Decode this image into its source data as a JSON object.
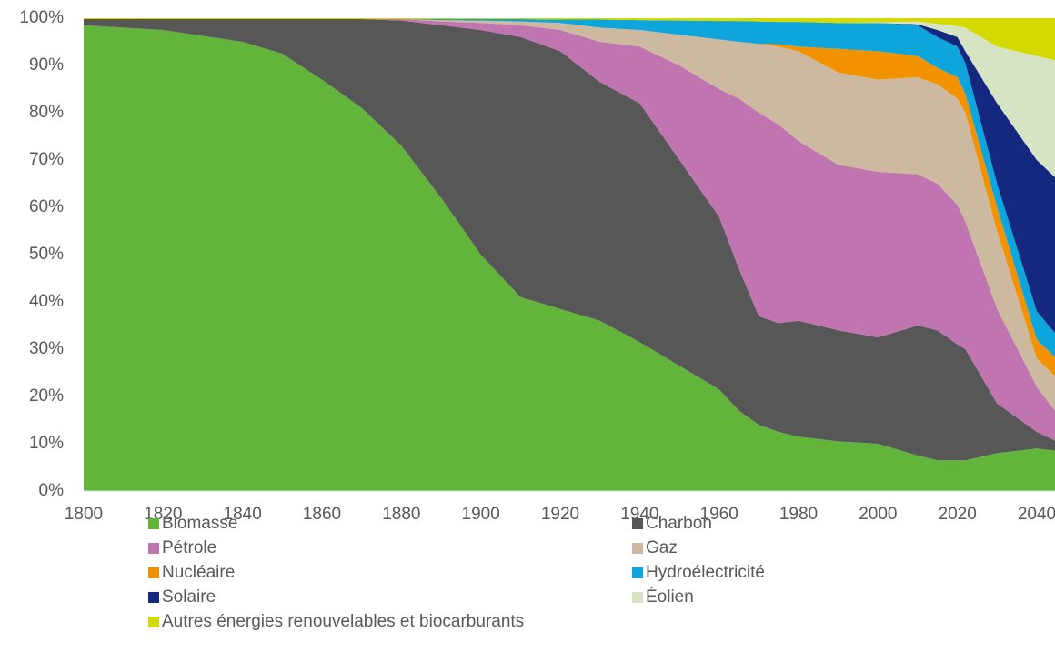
{
  "chart_data": {
    "type": "stacked_area",
    "x": [
      1800,
      1820,
      1840,
      1850,
      1860,
      1870,
      1880,
      1890,
      1900,
      1910,
      1920,
      1930,
      1940,
      1950,
      1960,
      1965,
      1970,
      1975,
      1980,
      1990,
      2000,
      2010,
      2015,
      2020,
      2022,
      2030,
      2040,
      2045
    ],
    "xlim": [
      1800,
      2045
    ],
    "xticks": [
      1800,
      1820,
      1840,
      1860,
      1880,
      1900,
      1920,
      1940,
      1960,
      1980,
      2000,
      2020,
      2040
    ],
    "ylim": [
      0,
      100
    ],
    "yticks": [
      {
        "value": 0,
        "label": "0%"
      },
      {
        "value": 10,
        "label": "10%"
      },
      {
        "value": 20,
        "label": "20%"
      },
      {
        "value": 30,
        "label": "30%"
      },
      {
        "value": 40,
        "label": "40%"
      },
      {
        "value": 50,
        "label": "50%"
      },
      {
        "value": 60,
        "label": "60%"
      },
      {
        "value": 70,
        "label": "70%"
      },
      {
        "value": 80,
        "label": "80%"
      },
      {
        "value": 90,
        "label": "90%"
      },
      {
        "value": 100,
        "label": "100%"
      }
    ],
    "series": [
      {
        "name": "Biomasse",
        "color": "#63b43a",
        "values": [
          98.5,
          97.5,
          95,
          92.5,
          87,
          81,
          73,
          62,
          50,
          41,
          38.5,
          36,
          31.5,
          26.5,
          21.5,
          17,
          14,
          12.5,
          11.5,
          10.5,
          10,
          7.5,
          6.5,
          6.5,
          6.5,
          8,
          9,
          8.5
        ]
      },
      {
        "name": "Charbon",
        "color": "#575757",
        "values": [
          1.3,
          2.3,
          4.8,
          7.3,
          12.8,
          18.8,
          26.5,
          36.5,
          47.5,
          55,
          54.5,
          50.5,
          50.5,
          43.5,
          36.5,
          30,
          23,
          23,
          24.5,
          23.5,
          22.5,
          27.5,
          27.5,
          24.5,
          23.5,
          10.5,
          3.5,
          2
        ]
      },
      {
        "name": "Pétrole",
        "color": "#c074b0",
        "values": [
          0,
          0,
          0,
          0,
          0,
          0,
          0.3,
          0.8,
          1.5,
          2.5,
          4.5,
          8.5,
          12,
          20,
          27,
          36,
          43,
          42,
          38,
          35,
          35,
          32,
          31,
          29.5,
          27,
          20,
          9.5,
          6
        ]
      },
      {
        "name": "Gaz",
        "color": "#ccb9a0",
        "values": [
          0,
          0,
          0,
          0,
          0,
          0,
          0,
          0.3,
          0.5,
          0.8,
          1.5,
          3,
          3.5,
          6.5,
          10.5,
          12,
          14.5,
          16.5,
          19,
          19.5,
          19.5,
          20.5,
          21,
          22.5,
          23,
          16.5,
          6,
          7.5
        ]
      },
      {
        "name": "Nucléaire",
        "color": "#f39200",
        "values": [
          0,
          0,
          0,
          0,
          0,
          0,
          0,
          0,
          0,
          0,
          0,
          0,
          0,
          0,
          0,
          0,
          0.1,
          0.5,
          1,
          5,
          6,
          4.5,
          3.5,
          4.5,
          4,
          5,
          4,
          4
        ]
      },
      {
        "name": "Hydroélectricité",
        "color": "#0ea5dc",
        "values": [
          0,
          0,
          0,
          0,
          0,
          0,
          0,
          0.2,
          0.3,
          0.5,
          0.7,
          1.7,
          2.1,
          3,
          3.9,
          4.4,
          4.7,
          4.7,
          5.2,
          5.5,
          6,
          6.5,
          6.5,
          6.5,
          6.5,
          5,
          6,
          5
        ]
      },
      {
        "name": "Solaire",
        "color": "#14287f",
        "values": [
          0,
          0,
          0,
          0,
          0,
          0,
          0,
          0,
          0,
          0,
          0,
          0,
          0,
          0,
          0,
          0,
          0,
          0,
          0,
          0,
          0,
          0.2,
          1.5,
          2,
          2.5,
          17,
          32,
          33
        ]
      },
      {
        "name": "Éolien",
        "color": "#d7e4c4",
        "values": [
          0,
          0,
          0,
          0,
          0,
          0,
          0,
          0,
          0,
          0,
          0,
          0,
          0,
          0,
          0,
          0,
          0,
          0,
          0,
          0,
          0.1,
          0.6,
          1.3,
          2.3,
          5,
          12,
          22,
          25
        ]
      },
      {
        "name": "Autres énergies renouvelables et biocarburants",
        "color": "#d4d900",
        "values": [
          0.2,
          0.2,
          0.2,
          0.2,
          0.2,
          0.2,
          0.2,
          0.2,
          0.2,
          0.2,
          0.3,
          0.3,
          0.4,
          0.5,
          0.6,
          0.6,
          0.7,
          0.8,
          0.8,
          1,
          0.9,
          0.7,
          1.2,
          1.7,
          2,
          6,
          8,
          9
        ]
      }
    ]
  }
}
